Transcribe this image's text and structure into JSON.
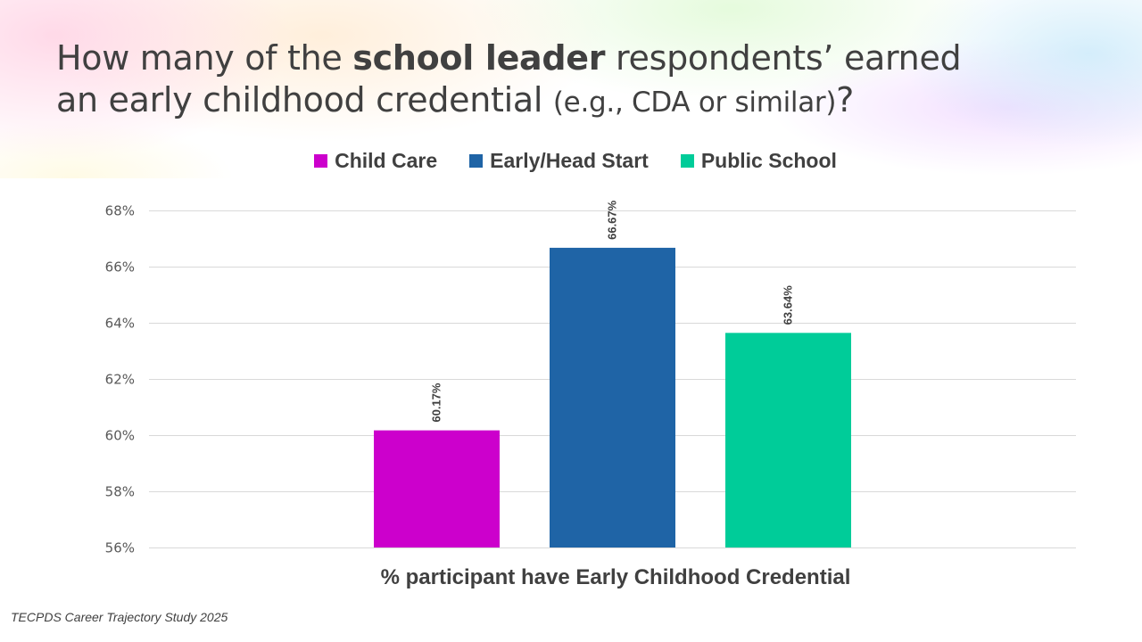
{
  "slide": {
    "title_part1": "How many of the ",
    "title_bold": "school leader",
    "title_part2": " respondents’ earned",
    "title_line2": "an early childhood credential ",
    "title_small": "(e.g., CDA or similar)",
    "title_end": "?",
    "source": "TECPDS Career Trajectory Study 2025"
  },
  "chart_data": {
    "type": "bar",
    "title": "How many of the school leader respondents’ earned an early childhood credential (e.g., CDA or similar)?",
    "xlabel": "% participant have Early Childhood Credential",
    "ylabel": "",
    "categories": [
      "% participant have Early Childhood Credential"
    ],
    "series": [
      {
        "name": "Child Care",
        "values": [
          60.17
        ],
        "color": "#CC00CC",
        "label": "60.17%"
      },
      {
        "name": "Early/Head Start",
        "values": [
          66.67
        ],
        "color": "#1F64A6",
        "label": "66.67%"
      },
      {
        "name": "Public School",
        "values": [
          63.64
        ],
        "color": "#00CC99",
        "label": "63.64%"
      }
    ],
    "ylim": [
      56,
      68
    ],
    "yticks": [
      56,
      58,
      60,
      62,
      64,
      66,
      68
    ],
    "ytick_labels": [
      "56%",
      "58%",
      "60%",
      "62%",
      "64%",
      "66%",
      "68%"
    ],
    "grid": true,
    "legend_position": "top-center",
    "data_labels": "rotated-vertical-above-bars"
  }
}
